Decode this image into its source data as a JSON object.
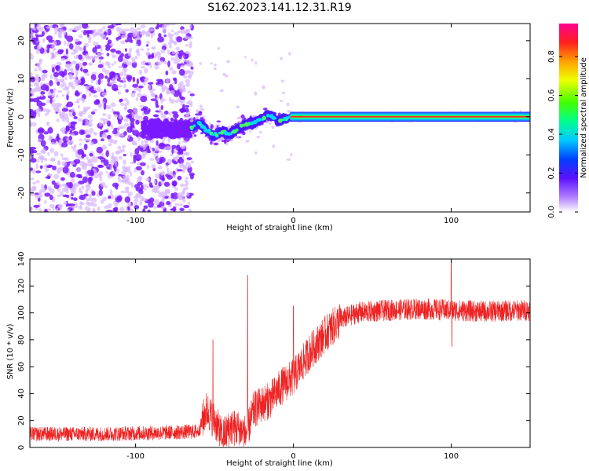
{
  "title": "S162.2023.141.12.31.R19",
  "colors": {
    "snr_line": "#ee2222",
    "spectrum_scatter": "#7a18ff",
    "spectrum_light": "#d8b8ff"
  },
  "chart_data": [
    {
      "type": "heatmap",
      "xlabel": "Height of straight line (km)",
      "ylabel": "Frequency (Hz)",
      "xlim": [
        -167,
        150
      ],
      "ylim": [
        -25,
        24.5
      ],
      "xticks": [
        -100,
        0,
        100
      ],
      "yticks": [
        -20,
        -10,
        0,
        10,
        20
      ],
      "grid": false,
      "colorbar": {
        "label": "Normalized spectral amplitude",
        "range": [
          0,
          0.97
        ],
        "ticks": [
          0.0,
          0.2,
          0.4,
          0.6,
          0.8
        ],
        "colormap": "rainbow (violet to red/magenta)"
      },
      "ridge": {
        "x": [
          -65,
          -60,
          -55,
          -50,
          -45,
          -40,
          -35,
          -30,
          -25,
          -20,
          -15,
          -10,
          -5,
          0,
          10,
          20,
          40,
          60,
          80,
          100,
          120,
          150
        ],
        "y": [
          -3,
          -1.5,
          -3.5,
          -5,
          -4,
          -4.5,
          -3,
          -2,
          -1.5,
          -0.5,
          0.5,
          -1,
          -0.5,
          0,
          0,
          0,
          0,
          0,
          0,
          0,
          0,
          0
        ]
      }
    },
    {
      "type": "line",
      "xlabel": "Height of straight line (km)",
      "ylabel": "SNR (10 * v/v)",
      "xlim": [
        -167,
        150
      ],
      "ylim": [
        0,
        140
      ],
      "xticks": [
        -100,
        0,
        100
      ],
      "yticks": [
        0,
        20,
        40,
        60,
        80,
        100,
        120,
        140
      ],
      "grid": false,
      "trend": {
        "x": [
          -167,
          -120,
          -80,
          -60,
          -55,
          -50,
          -45,
          -40,
          -35,
          -30,
          -25,
          -20,
          -15,
          -10,
          -5,
          0,
          10,
          20,
          30,
          40,
          60,
          80,
          100,
          120,
          150
        ],
        "y": [
          10,
          10,
          11,
          12,
          28,
          20,
          8,
          15,
          14,
          10,
          28,
          32,
          35,
          42,
          48,
          52,
          70,
          84,
          95,
          100,
          102,
          103,
          102,
          101,
          102
        ]
      },
      "spikes": [
        {
          "x": -51,
          "y": 80
        },
        {
          "x": -29,
          "y": 128
        },
        {
          "x": 0,
          "y": 105
        },
        {
          "x": 100,
          "y": 140
        },
        {
          "x": 100.5,
          "y": 75
        }
      ]
    }
  ]
}
